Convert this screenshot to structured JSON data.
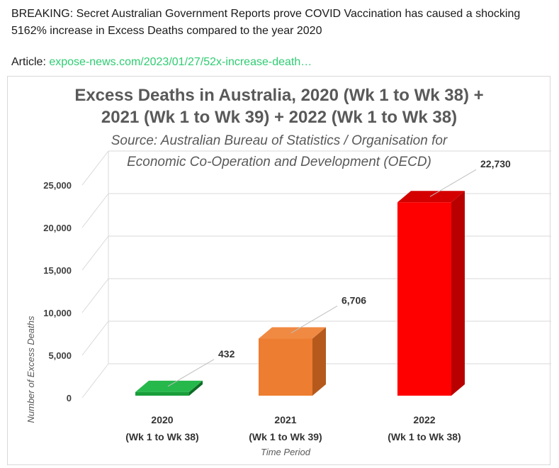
{
  "post": {
    "headline": "BREAKING: Secret Australian Government Reports prove COVID Vaccination has caused a shocking 5162% increase in Excess Deaths compared to the year 2020",
    "article_prefix": "Article: ",
    "article_link": "expose-news.com/2023/01/27/52x-increase-death…"
  },
  "chart_data": {
    "type": "bar",
    "title_line1": "Excess Deaths in Australia, 2020 (Wk 1 to Wk 38) +",
    "title_line2": "2021 (Wk 1 to Wk 39) + 2022 (Wk 1 to Wk 38)",
    "subtitle_line1": "Source: Australian Bureau of Statistics / Organisation for",
    "subtitle_line2": "Economic Co-Operation and Development (OECD)",
    "categories": [
      {
        "year": "2020",
        "period": "(Wk 1 to Wk 38)"
      },
      {
        "year": "2021",
        "period": "(Wk 1 to Wk 39)"
      },
      {
        "year": "2022",
        "period": "(Wk 1 to Wk 38)"
      }
    ],
    "values": [
      432,
      6706,
      22730
    ],
    "value_labels": [
      "432",
      "6,706",
      "22,730"
    ],
    "bar_colors": [
      "#1a9e3a",
      "#ed7d31",
      "#ff0000"
    ],
    "bar_side_colors": [
      "#0e6b26",
      "#b55a1c",
      "#b80000"
    ],
    "bar_top_colors": [
      "#27b84c",
      "#f08a42",
      "#d40000"
    ],
    "ylabel": "Number of Excess Deaths",
    "xlabel": "Time Period",
    "ylim": [
      0,
      25000
    ],
    "yticks": [
      0,
      5000,
      10000,
      15000,
      20000,
      25000
    ],
    "ytick_labels": [
      "0",
      "5,000",
      "10,000",
      "15,000",
      "20,000",
      "25,000"
    ],
    "grid": true
  }
}
